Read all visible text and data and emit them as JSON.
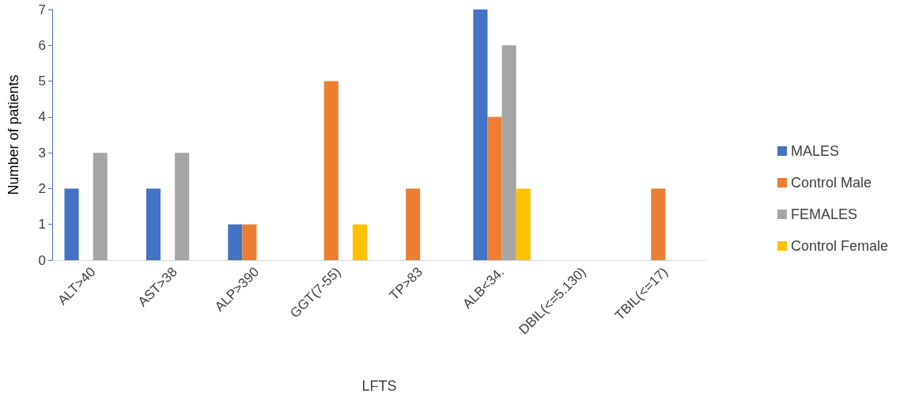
{
  "chart_data": {
    "type": "bar",
    "xlabel": "LFTS",
    "ylabel": "Number of patients",
    "categories": [
      "ALT>40",
      "AST>38",
      "ALP>390",
      "GGT(7-55)",
      "TP>83",
      "ALB<34.",
      "DBIL(<=5.130)",
      "TBIL(<=17)"
    ],
    "series": [
      {
        "name": "MALES",
        "color": "#4472c4",
        "values": [
          2,
          2,
          1,
          0,
          0,
          7,
          0,
          0
        ]
      },
      {
        "name": "Control Male",
        "color": "#ed7d31",
        "values": [
          0,
          0,
          1,
          5,
          2,
          4,
          0,
          2
        ]
      },
      {
        "name": "FEMALES",
        "color": "#a5a5a5",
        "values": [
          3,
          3,
          0,
          0,
          0,
          6,
          0,
          0
        ]
      },
      {
        "name": "Control Female",
        "color": "#ffc000",
        "values": [
          0,
          0,
          0,
          1,
          0,
          2,
          0,
          0
        ]
      }
    ],
    "ylim": [
      0,
      7
    ],
    "yticks": [
      0,
      1,
      2,
      3,
      4,
      5,
      6,
      7
    ],
    "grid": false,
    "legend": "right"
  }
}
